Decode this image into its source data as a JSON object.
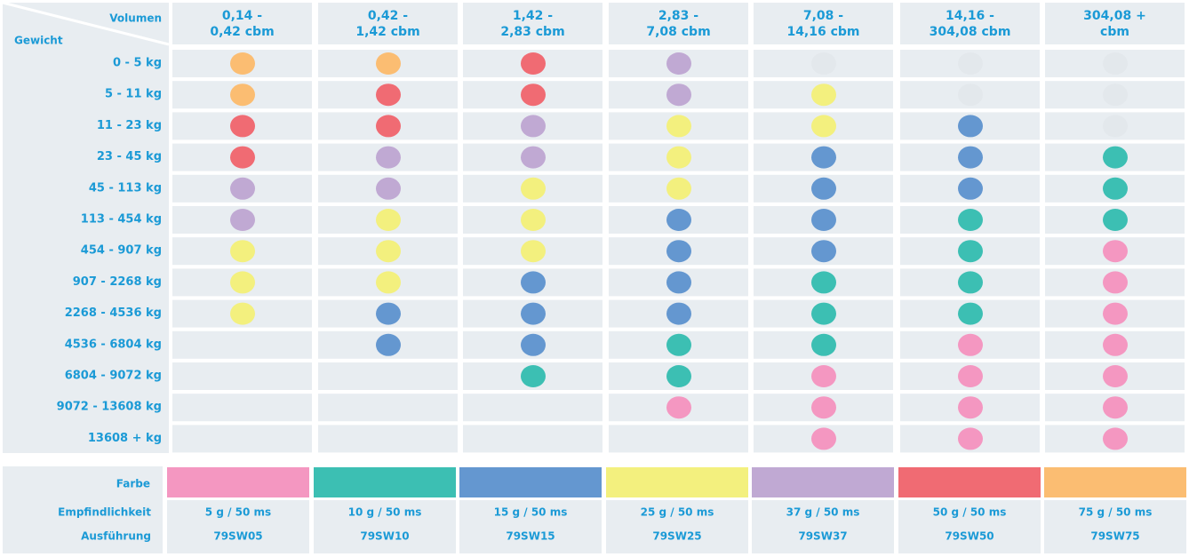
{
  "header": {
    "volume_label": "Volumen",
    "weight_label": "Gewicht"
  },
  "columns": [
    [
      "0,14 -",
      "0,42 cbm"
    ],
    [
      "0,42 -",
      "1,42 cbm"
    ],
    [
      "1,42 -",
      "2,83 cbm"
    ],
    [
      "2,83 -",
      "7,08 cbm"
    ],
    [
      "7,08 -",
      "14,16 cbm"
    ],
    [
      "14,16 -",
      "304,08 cbm"
    ],
    [
      "304,08 +",
      "cbm"
    ]
  ],
  "dot_colors": {
    "O": "#fbbd72",
    "R": "#f06b73",
    "P": "#c0a9d3",
    "Y": "#f3f07e",
    "B": "#6497d0",
    "T": "#3cbfb3",
    "K": "#f497c1",
    "G": "#e3e8ec"
  },
  "rows": [
    {
      "label": "0 - 5 kg",
      "cells": [
        "O",
        "O",
        "R",
        "P",
        "G",
        "G",
        "G"
      ]
    },
    {
      "label": "5 - 11 kg",
      "cells": [
        "O",
        "R",
        "R",
        "P",
        "Y",
        "G",
        "G"
      ]
    },
    {
      "label": "11 - 23 kg",
      "cells": [
        "R",
        "R",
        "P",
        "Y",
        "Y",
        "B",
        "G"
      ]
    },
    {
      "label": "23 - 45 kg",
      "cells": [
        "R",
        "P",
        "P",
        "Y",
        "B",
        "B",
        "T"
      ]
    },
    {
      "label": "45 - 113 kg",
      "cells": [
        "P",
        "P",
        "Y",
        "Y",
        "B",
        "B",
        "T"
      ]
    },
    {
      "label": "113 - 454 kg",
      "cells": [
        "P",
        "Y",
        "Y",
        "B",
        "B",
        "T",
        "T"
      ]
    },
    {
      "label": "454 - 907 kg",
      "cells": [
        "Y",
        "Y",
        "Y",
        "B",
        "B",
        "T",
        "K"
      ]
    },
    {
      "label": "907 - 2268 kg",
      "cells": [
        "Y",
        "Y",
        "B",
        "B",
        "T",
        "T",
        "K"
      ]
    },
    {
      "label": "2268 - 4536 kg",
      "cells": [
        "Y",
        "B",
        "B",
        "B",
        "T",
        "T",
        "K"
      ]
    },
    {
      "label": "4536 - 6804 kg",
      "cells": [
        null,
        "B",
        "B",
        "T",
        "T",
        "K",
        "K"
      ]
    },
    {
      "label": "6804 - 9072 kg",
      "cells": [
        null,
        null,
        "T",
        "T",
        "K",
        "K",
        "K"
      ]
    },
    {
      "label": "9072 - 13608 kg",
      "cells": [
        null,
        null,
        null,
        "K",
        "K",
        "K",
        "K"
      ]
    },
    {
      "label": "13608 + kg",
      "cells": [
        null,
        null,
        null,
        null,
        "K",
        "K",
        "K"
      ]
    }
  ],
  "legend": {
    "color_label": "Farbe",
    "sensitivity_label": "Empfindlichkeit",
    "model_label": "Ausführung",
    "items": [
      {
        "color": "#f497c1",
        "sensitivity": "5 g / 50 ms",
        "model": "79SW05"
      },
      {
        "color": "#3cbfb3",
        "sensitivity": "10 g / 50 ms",
        "model": "79SW10"
      },
      {
        "color": "#6497d0",
        "sensitivity": "15 g / 50 ms",
        "model": "79SW15"
      },
      {
        "color": "#f3f07e",
        "sensitivity": "25 g / 50 ms",
        "model": "79SW25"
      },
      {
        "color": "#c0a9d3",
        "sensitivity": "37 g / 50 ms",
        "model": "79SW37"
      },
      {
        "color": "#f06b73",
        "sensitivity": "50 g / 50 ms",
        "model": "79SW50"
      },
      {
        "color": "#fbbd72",
        "sensitivity": "75 g / 50 ms",
        "model": "79SW75"
      }
    ]
  }
}
